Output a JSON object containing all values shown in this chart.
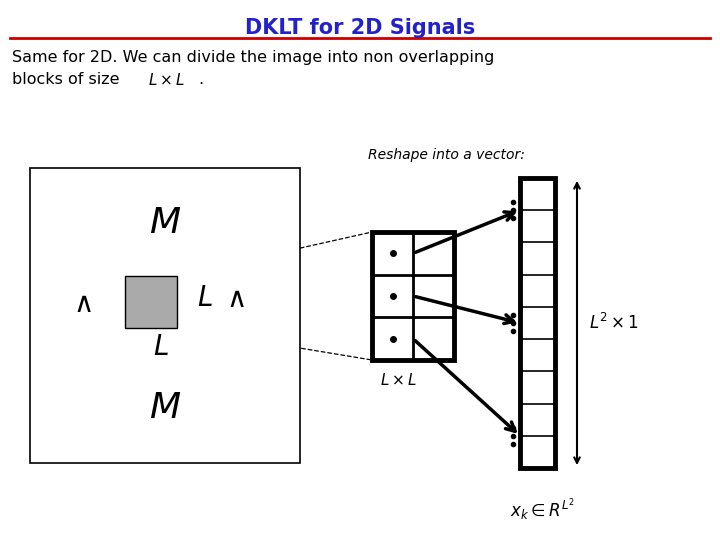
{
  "title": "DKLT for 2D Signals",
  "title_color": "#2222cc",
  "title_fontsize": 15,
  "line_color": "#cc0000",
  "bg_color": "#ffffff",
  "text_line1": "Same for 2D. We can divide the image into non overlapping",
  "text_line2": "blocks of size",
  "reshape_label": "Reshape into a vector:"
}
